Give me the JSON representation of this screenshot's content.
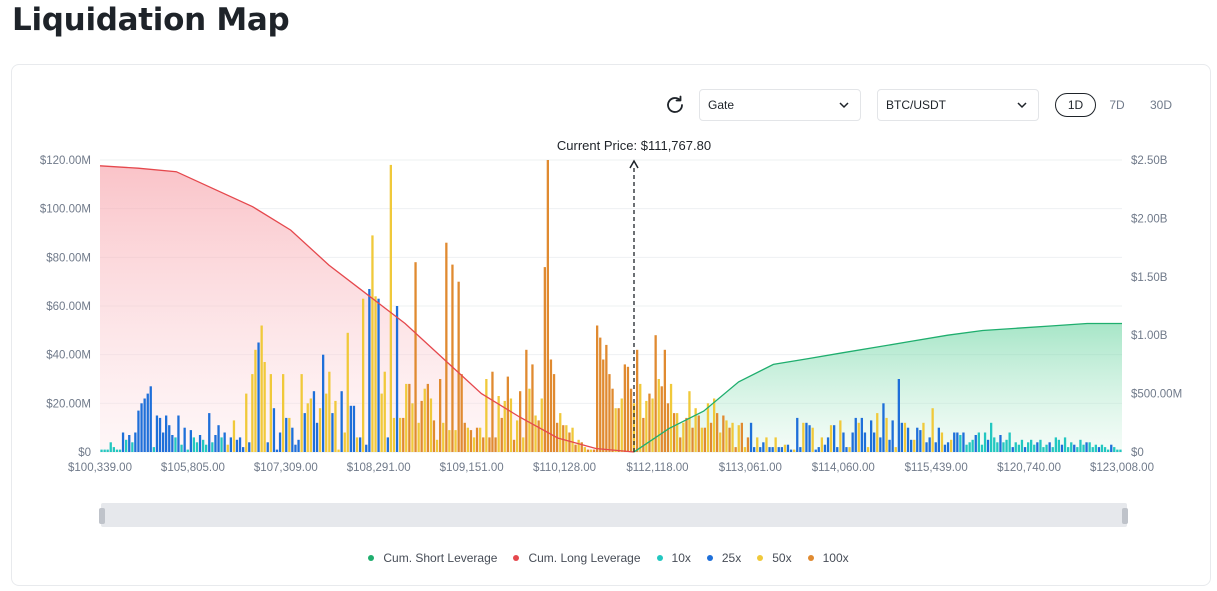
{
  "page": {
    "title": "Liquidation Map"
  },
  "controls": {
    "exchange": "Gate",
    "pair": "BTC/USDT",
    "timeframes": [
      "1D",
      "7D",
      "30D"
    ],
    "active_timeframe": "1D"
  },
  "colors": {
    "short": "#1fae6e",
    "long": "#e5484d",
    "x10": "#22c7c0",
    "x25": "#1e6fd9",
    "x50": "#f0c93a",
    "x100": "#e08a30",
    "grid": "#eef0f2",
    "axis_text": "#707a8a"
  },
  "chart_data": {
    "type": "bar",
    "title": "Current Price: $111,767.80",
    "current_price": 111767.8,
    "x_tick_labels": [
      "$100,339.00",
      "$105,805.00",
      "$107,309.00",
      "$108,291.00",
      "$109,151.00",
      "$110,128.00",
      "$112,118.00",
      "$113,061.00",
      "$114,060.00",
      "$115,439.00",
      "$120,740.00",
      "$123,008.00"
    ],
    "y_left": {
      "ticks": [
        "$0",
        "$20.00M",
        "$40.00M",
        "$60.00M",
        "$80.00M",
        "$100.00M",
        "$120.00M"
      ],
      "ylim": [
        0,
        120
      ]
    },
    "y_right": {
      "ticks": [
        "$0",
        "$500.00M",
        "$1.00B",
        "$1.50B",
        "$2.00B",
        "$2.50B"
      ],
      "ylim": [
        0,
        2.5
      ]
    },
    "bar_values_millions": [
      1,
      1,
      1,
      4,
      2,
      1,
      1,
      8,
      5,
      7,
      4,
      8,
      17,
      20,
      22,
      24,
      27,
      2,
      15,
      14,
      8,
      15,
      11,
      7,
      6,
      15,
      3,
      10,
      1,
      9,
      6,
      4,
      7,
      5,
      3,
      16,
      4,
      7,
      11,
      6,
      8,
      3,
      6,
      13,
      5,
      6,
      2,
      24,
      4,
      32,
      42,
      45,
      52,
      37,
      4,
      32,
      18,
      1,
      8,
      32,
      14,
      14,
      10,
      3,
      5,
      32,
      16,
      20,
      22,
      25,
      12,
      18,
      40,
      24,
      33,
      16,
      21,
      1,
      25,
      8,
      49,
      19,
      19,
      6,
      6,
      63,
      3,
      67,
      89,
      64,
      63,
      24,
      33,
      6,
      118,
      14,
      60,
      14,
      14,
      28,
      28,
      20,
      78,
      12,
      21,
      26,
      28,
      22,
      13,
      5,
      30,
      12,
      86,
      9,
      77,
      9,
      70,
      32,
      12,
      10,
      9,
      6,
      10,
      10,
      6,
      30,
      6,
      33,
      6,
      23,
      14,
      21,
      31,
      22,
      5,
      13,
      25,
      6,
      42,
      26,
      36,
      15,
      13,
      22,
      76,
      120,
      38,
      32,
      12,
      16,
      11,
      11,
      8,
      10,
      3,
      5,
      4,
      2,
      1,
      1,
      1,
      52,
      47,
      38,
      44,
      32,
      26,
      18,
      18,
      22,
      36,
      35,
      26,
      20,
      42,
      28,
      14,
      21,
      24,
      22,
      48,
      30,
      27,
      42,
      20,
      28,
      16,
      16,
      6,
      12,
      14,
      25,
      10,
      18,
      15,
      10,
      10,
      20,
      12,
      22,
      16,
      8,
      15,
      13,
      10,
      12,
      2,
      11,
      12,
      2,
      6,
      12,
      2,
      6,
      2,
      4,
      6,
      2,
      2,
      6,
      2,
      2,
      3,
      3,
      1,
      1,
      14,
      2,
      12,
      12,
      11,
      10,
      1,
      2,
      6,
      3,
      6,
      11,
      11,
      2,
      13,
      8,
      2,
      2,
      8,
      14,
      12,
      14,
      8,
      2,
      13,
      8,
      16,
      6,
      20,
      14,
      5,
      13,
      2,
      30,
      12,
      12,
      10,
      5,
      5,
      10,
      9,
      12,
      4,
      6,
      18,
      4,
      10,
      8,
      3,
      4,
      5,
      8,
      8,
      7,
      8,
      3,
      4,
      5,
      7,
      8,
      3,
      8,
      5,
      12,
      6,
      4,
      7,
      4,
      5,
      8,
      2,
      4,
      3,
      5,
      2,
      4,
      5,
      3,
      4,
      5,
      2,
      3,
      4,
      2,
      6,
      5,
      3,
      6,
      2,
      4,
      3,
      2,
      5,
      3,
      4,
      4,
      2,
      3,
      2,
      3,
      2,
      1,
      3,
      2,
      1,
      1
    ],
    "bar_leverage_pattern": [
      "10x",
      "25x",
      "50x",
      "100x"
    ],
    "series": [
      {
        "name": "Cum. Short Leverage",
        "values_billions": [
          0.0,
          0.2,
          0.35,
          0.6,
          0.75,
          0.8,
          0.85,
          0.9,
          0.95,
          1.0,
          1.04,
          1.06,
          1.08,
          1.1,
          1.1
        ]
      },
      {
        "name": "Cum. Long Leverage",
        "values_billions": [
          2.45,
          2.43,
          2.4,
          2.25,
          2.1,
          1.9,
          1.6,
          1.35,
          1.1,
          0.8,
          0.5,
          0.3,
          0.12,
          0.03,
          0.0
        ]
      }
    ],
    "legend": [
      "Cum. Short Leverage",
      "Cum. Long Leverage",
      "10x",
      "25x",
      "50x",
      "100x"
    ]
  }
}
